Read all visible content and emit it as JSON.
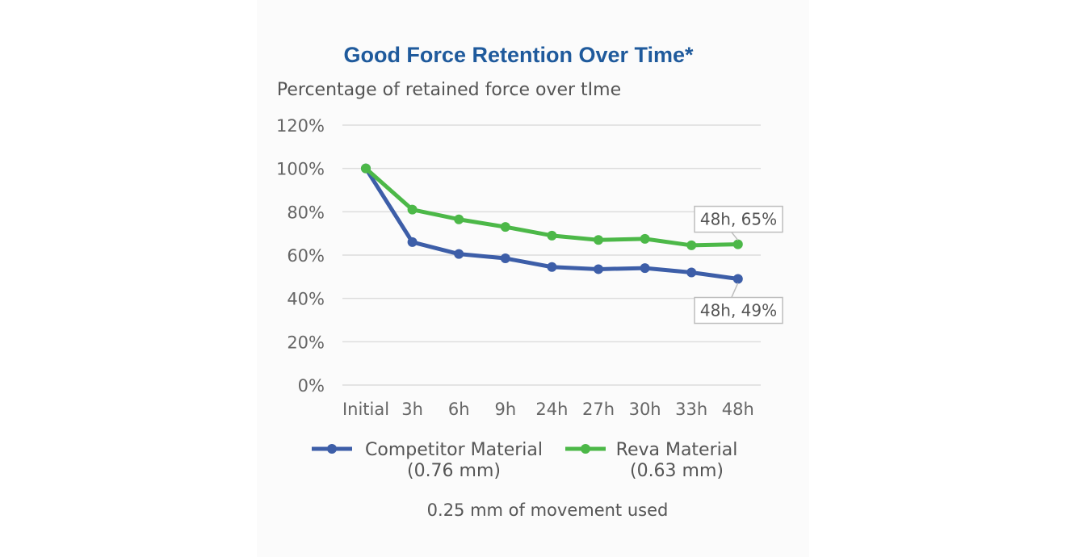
{
  "chart_data": {
    "type": "line",
    "title": "Good Force Retention Over Time*",
    "subtitle": "Percentage of retained force over tIme",
    "categories": [
      "Initial",
      "3h",
      "6h",
      "9h",
      "24h",
      "27h",
      "30h",
      "33h",
      "48h"
    ],
    "y_ticks": [
      "0%",
      "20%",
      "40%",
      "60%",
      "80%",
      "100%",
      "120%"
    ],
    "ylim": [
      0,
      120
    ],
    "grid": true,
    "series": [
      {
        "name": "Competitor Material",
        "name_line2": "(0.76 mm)",
        "color": "#3d5ea8",
        "values": [
          100,
          66,
          60.5,
          58.5,
          54.5,
          53.5,
          54,
          52,
          49
        ]
      },
      {
        "name": "Reva Material",
        "name_line2": "(0.63 mm)",
        "color": "#4cb848",
        "values": [
          100,
          81,
          76.5,
          73,
          69,
          67,
          67.5,
          64.5,
          65
        ]
      }
    ],
    "annotations": [
      {
        "series": "Reva Material",
        "category": "48h",
        "text": "48h, 65%"
      },
      {
        "series": "Competitor Material",
        "category": "48h",
        "text": "48h, 49%"
      }
    ],
    "legend_position": "bottom",
    "footnote": "0.25 mm of movement used"
  }
}
